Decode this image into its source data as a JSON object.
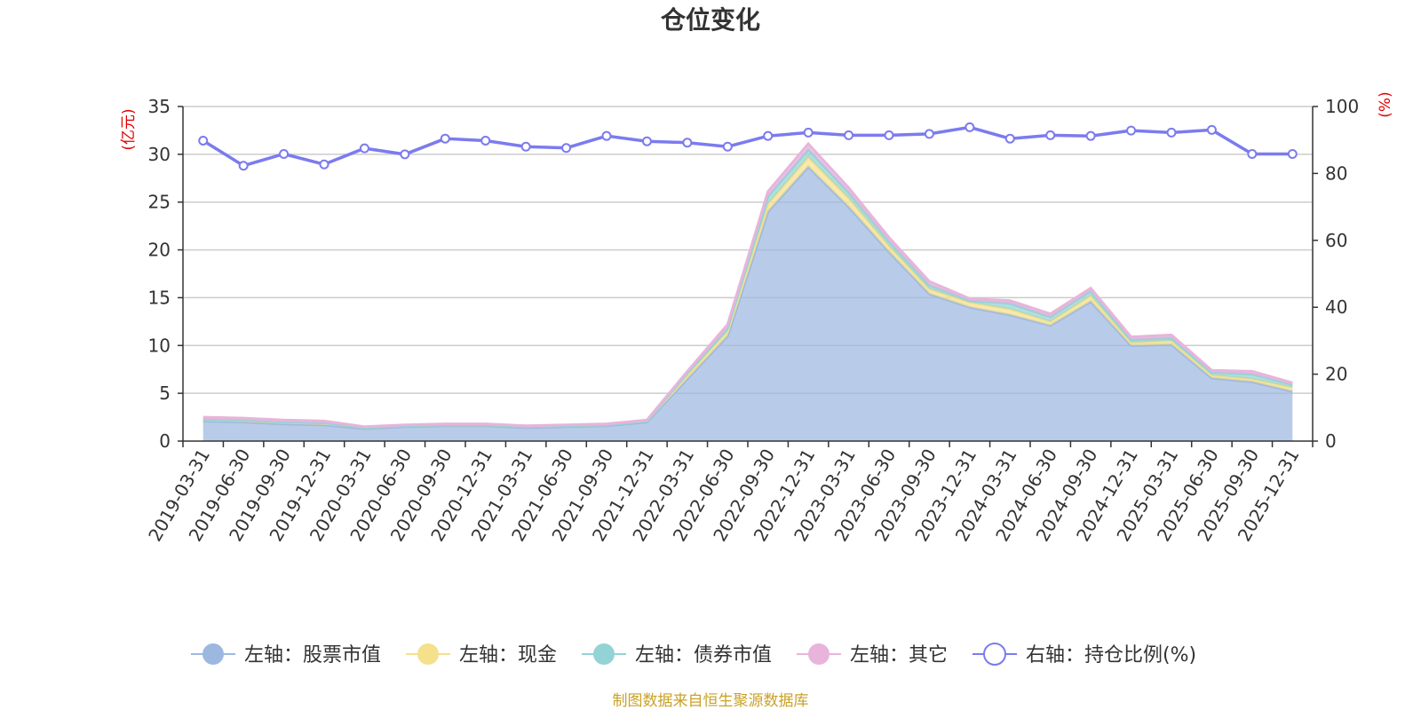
{
  "chart_data": {
    "type": "area",
    "title": "仓位变化",
    "left_axis": {
      "unit": "(亿元)",
      "ylim": [
        0,
        35
      ],
      "ticks": [
        0,
        5,
        10,
        15,
        20,
        25,
        30,
        35
      ]
    },
    "right_axis": {
      "unit": "(%)",
      "ylim": [
        0,
        100
      ],
      "ticks": [
        0,
        20,
        40,
        60,
        80,
        100
      ]
    },
    "categories": [
      "2019-03-31",
      "2019-06-30",
      "2019-09-30",
      "2019-12-31",
      "2020-03-31",
      "2020-06-30",
      "2020-09-30",
      "2020-12-31",
      "2021-03-31",
      "2021-06-30",
      "2021-09-30",
      "2021-12-31",
      "2022-03-31",
      "2022-06-30",
      "2022-09-30",
      "2022-12-31",
      "2023-03-31",
      "2023-06-30",
      "2023-09-30",
      "2023-12-31",
      "2024-03-31",
      "2024-06-30",
      "2024-09-30",
      "2024-12-31",
      "2025-03-31",
      "2025-06-30",
      "2025-09-30",
      "2025-12-31"
    ],
    "series": [
      {
        "name": "左轴：股票市值",
        "axis": "left",
        "stack": true,
        "color": "#9db8e0",
        "values": [
          2.1,
          2.0,
          1.8,
          1.7,
          1.3,
          1.5,
          1.6,
          1.6,
          1.4,
          1.5,
          1.6,
          2.0,
          6.5,
          11.0,
          24.0,
          28.7,
          24.5,
          19.8,
          15.4,
          14.0,
          13.2,
          12.1,
          14.6,
          10.0,
          10.1,
          6.6,
          6.2,
          5.2
        ]
      },
      {
        "name": "左轴：现金",
        "axis": "left",
        "stack": true,
        "color": "#f5e08c",
        "values": [
          0.2,
          0.2,
          0.2,
          0.2,
          0.1,
          0.1,
          0.1,
          0.1,
          0.1,
          0.1,
          0.1,
          0.1,
          0.4,
          0.5,
          0.8,
          1.0,
          0.9,
          0.6,
          0.5,
          0.5,
          0.6,
          0.4,
          0.6,
          0.3,
          0.4,
          0.3,
          0.3,
          0.4
        ]
      },
      {
        "name": "左轴：债券市值",
        "axis": "left",
        "stack": true,
        "color": "#93d3d6",
        "values": [
          0.0,
          0.0,
          0.0,
          0.0,
          0.0,
          0.0,
          0.0,
          0.0,
          0.0,
          0.0,
          0.0,
          0.0,
          0.2,
          0.3,
          0.8,
          0.8,
          0.6,
          0.5,
          0.4,
          0.2,
          0.6,
          0.5,
          0.5,
          0.3,
          0.3,
          0.3,
          0.5,
          0.3
        ]
      },
      {
        "name": "左轴：其它",
        "axis": "left",
        "stack": true,
        "color": "#e8b4dc",
        "values": [
          0.2,
          0.2,
          0.2,
          0.2,
          0.1,
          0.1,
          0.1,
          0.1,
          0.1,
          0.1,
          0.1,
          0.1,
          0.2,
          0.4,
          0.5,
          0.6,
          0.5,
          0.4,
          0.4,
          0.2,
          0.3,
          0.3,
          0.3,
          0.3,
          0.3,
          0.2,
          0.3,
          0.2
        ]
      },
      {
        "name": "右轴：持仓比例(%)",
        "axis": "right",
        "stack": false,
        "color": "#7b7bef",
        "values": [
          89.8,
          82.3,
          85.8,
          82.7,
          87.5,
          85.7,
          90.4,
          89.8,
          88.0,
          87.6,
          91.2,
          89.6,
          89.2,
          88.0,
          91.2,
          92.2,
          91.4,
          91.4,
          91.8,
          93.8,
          90.4,
          91.4,
          91.2,
          92.8,
          92.2,
          93.0,
          85.8,
          85.8
        ]
      }
    ]
  },
  "footer": {
    "source": "制图数据来自恒生聚源数据库"
  }
}
